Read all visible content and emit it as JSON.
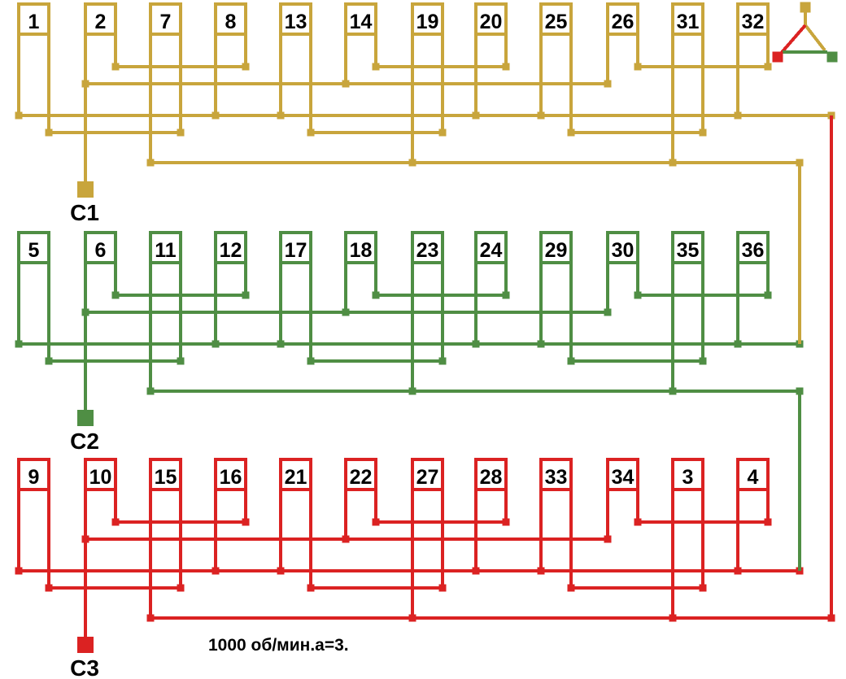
{
  "diagram": {
    "title_annotation": "1000 об/мин.a=3.",
    "connection_symbol": "delta",
    "colors": {
      "phase1": "#C8A53C",
      "phase2": "#4F8E44",
      "phase3": "#DB2222",
      "text": "#000000",
      "background": "#FFFFFF"
    },
    "phases": [
      {
        "terminal": "C1",
        "color_key": "phase1",
        "slots": [
          "1",
          "2",
          "7",
          "8",
          "13",
          "14",
          "19",
          "20",
          "25",
          "26",
          "31",
          "32"
        ]
      },
      {
        "terminal": "C2",
        "color_key": "phase2",
        "slots": [
          "5",
          "6",
          "11",
          "12",
          "17",
          "18",
          "23",
          "24",
          "29",
          "30",
          "35",
          "36"
        ]
      },
      {
        "terminal": "C3",
        "color_key": "phase3",
        "slots": [
          "9",
          "10",
          "15",
          "16",
          "21",
          "22",
          "27",
          "28",
          "33",
          "34",
          "3",
          "4"
        ]
      }
    ]
  }
}
